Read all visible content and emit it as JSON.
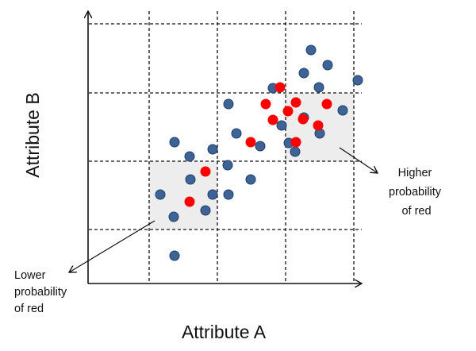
{
  "axes": {
    "x_title": "Attribute A",
    "y_title": "Attribute B"
  },
  "grid": {
    "style": "dashed"
  },
  "highlight_regions": [
    {
      "name": "lower-cell",
      "fill": "#ededed",
      "label_lines": [
        "Lower",
        "probability",
        "of red"
      ]
    },
    {
      "name": "higher-cell",
      "fill": "#ededed",
      "label_lines": [
        "Higher",
        "probability",
        "of red"
      ]
    }
  ],
  "colors": {
    "blue_point": "#3e6496",
    "blue_edge": "#1f3f6b",
    "red_point": "#ff0000",
    "line": "#111111"
  },
  "legend": null
}
